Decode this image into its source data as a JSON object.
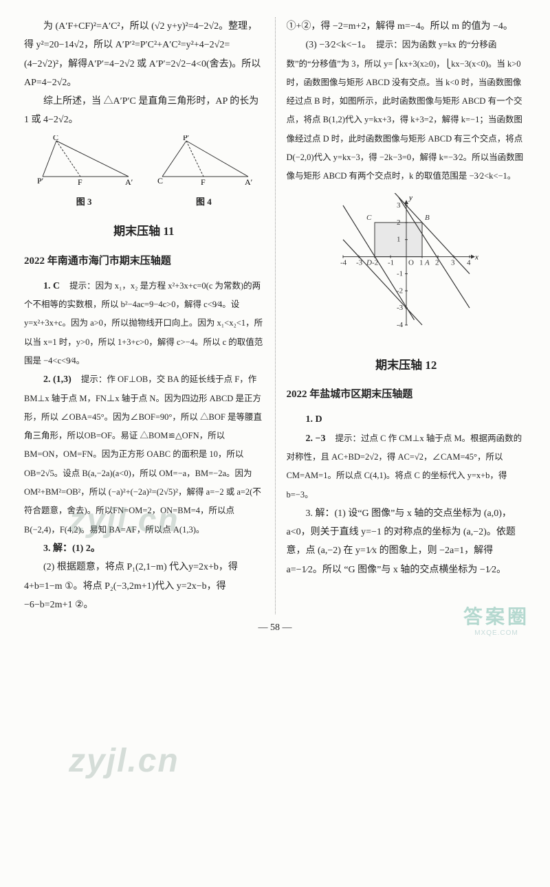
{
  "leftCol": {
    "p1": "为 (A′F+CF)²=A′C²，所以 (√2 y+y)²=4−2√2。整理，得 y²=20−14√2，所以 A′P′²=P′C²+A′C²=y²+4−2√2=(4−2√2)²，解得A′P′=4−2√2 或 A′P′=2√2−4<0(舍去)。所以 AP=4−2√2。",
    "p2": "综上所述，当 △A′P′C 是直角三角形时，AP 的长为 1 或 4−2√2。",
    "fig3": {
      "caption": "图 3",
      "labels": {
        "C": "C",
        "P": "P′",
        "F": "F",
        "A": "A′"
      },
      "stroke": "#333",
      "width": 150,
      "height": 72
    },
    "fig4": {
      "caption": "图 4",
      "labels": {
        "P": "P′",
        "C": "C",
        "F": "F",
        "A": "A′"
      },
      "stroke": "#333",
      "width": 150,
      "height": 72
    },
    "sectionTitle": "期末压轴 11",
    "subTitle": "2022 年南通市海门市期末压轴题",
    "q1_lead": "1. C　",
    "q1_hint_label": "提示：",
    "q1_hint": "因为 x₁，x₂ 是方程 x²+3x+c=0(c 为常数)的两个不相等的实数根，所以 b²−4ac=9−4c>0，解得 c<9⁄4。设 y=x²+3x+c。因为 a>0，所以抛物线开口向上。因为 x₁<x₂<1，所以当 x=1 时，y>0，所以 1+3+c>0，解得 c>−4。所以 c 的取值范围是 −4<c<9⁄4。",
    "q2_lead": "2. (1,3)　",
    "q2_hint_label": "提示：",
    "q2_hint": "作 OF⊥OB，交 BA 的延长线于点 F，作 BM⊥x 轴于点 M，FN⊥x 轴于点 N。因为四边形 ABCD 是正方形，所以 ∠OBA=45°。因为∠BOF=90°，所以 △BOF 是等腰直角三角形，所以OB=OF。易证 △BOM≌△OFN，所以 BM=ON，OM=FN。因为正方形 OABC 的面积是 10，所以 OB=2√5。设点 B(a,−2a)(a<0)，所以 OM=−a，BM=−2a。因为 OM²+BM²=OB²，所以 (−a)²+(−2a)²=(2√5)²，解得 a=−2 或 a=2(不符合题意，舍去)。所以FN=OM=2，ON=BM=4，所以点 B(−2,4)，F(4,2)。易知 BA=AF，所以点 A(1,3)。",
    "q3_1": "3. 解：(1) 2。",
    "q3_2": "(2) 根据题意，将点 P₁(2,1−m) 代入y=2x+b，得  4+b=1−m ①。将点  P₂(−3,2m+1)代入 y=2x−b，得 −6−b=2m+1 ②。"
  },
  "rightCol": {
    "p1": "①+②，得 −2=m+2，解得 m=−4。所以 m 的值为 −4。",
    "q3_3_lead": "(3) −3⁄2<k<−1。　",
    "q3_3_hint_label": "提示：",
    "q3_3_hint": "因为函数 y=kx 的“分移函数”的“分移值”为 3，所以 y=⎧kx+3(x≥0)，⎩kx−3(x<0)。当 k>0 时，函数图像与矩形 ABCD 没有交点。当 k<0 时，当函数图像经过点 B 时，如图所示，此时函数图像与矩形 ABCD 有一个交点，将点 B(1,2)代入 y=kx+3，得 k+3=2，解得 k=−1；当函数图像经过点 D 时，此时函数图像与矩形 ABCD 有三个交点，将点 D(−2,0)代入 y=kx−3，得 −2k−3=0，解得 k=−3⁄2。所以当函数图像与矩形 ABCD 有两个交点时，k 的取值范围是 −3⁄2<k<−1。",
    "chart": {
      "type": "coordinate-plot",
      "xlim": [
        -4,
        4
      ],
      "ylim": [
        -4,
        3
      ],
      "xticks": [
        -4,
        -3,
        -2,
        -1,
        1,
        2,
        3,
        4
      ],
      "yticks": [
        -4,
        -3,
        -2,
        -1,
        1,
        2,
        3
      ],
      "rect": {
        "A": [
          1,
          0
        ],
        "B": [
          1,
          2
        ],
        "C": [
          -2,
          2
        ],
        "D": [
          -2,
          0
        ]
      },
      "rect_fill": "#e8e8e8",
      "lines": [
        {
          "desc": "y=kx+3 (k=-1)",
          "p1": [
            -1,
            4
          ],
          "p2": [
            4,
            -1
          ],
          "stroke": "#333"
        },
        {
          "desc": "y=kx-3 (k=-1)",
          "p1": [
            -4,
            1
          ],
          "p2": [
            1,
            -4
          ],
          "stroke": "#333"
        },
        {
          "desc": "y=kx+3 (k=-1.5)",
          "p1": [
            -0.5,
            3.5
          ],
          "p2": [
            4,
            -3
          ],
          "stroke": "#333"
        },
        {
          "desc": "y=kx-3 (k=-1.5)",
          "p1": [
            -4,
            3
          ],
          "p2": [
            0.5,
            -3.7
          ],
          "stroke": "#333"
        }
      ],
      "axis_stroke": "#333",
      "bg": "#fcfcfa",
      "font_size": 11
    },
    "sectionTitle": "期末压轴 12",
    "subTitle": "2022 年盐城市区期末压轴题",
    "q1": "1. D",
    "q2_lead": "2. −3　",
    "q2_hint_label": "提示：",
    "q2_hint": "过点 C 作 CM⊥x 轴于点 M。根据两函数的对称性，且 AC+BD=2√2，得 AC=√2，∠CAM=45°，所以 CM=AM=1。所以点 C(4,1)。将点 C 的坐标代入 y=x+b，得 b=−3。",
    "q3": "3. 解：(1) 设“G 图像”与 x 轴的交点坐标为 (a,0)，a<0，则关于直线 y=−1 的对称点的坐标为 (a,−2)。依题意，点 (a,−2) 在  y=1⁄x 的图象上，则 −2a=1，解得 a=−1⁄2。所以 “G 图像”与 x 轴的交点横坐标为 −1⁄2。"
  },
  "pageNumber": "— 58 —",
  "watermarks": {
    "wm1": "zyjl.cn",
    "wm2": "zyjl.cn",
    "logoMain": "答案圈",
    "logoSub": "MXQE.COM"
  }
}
